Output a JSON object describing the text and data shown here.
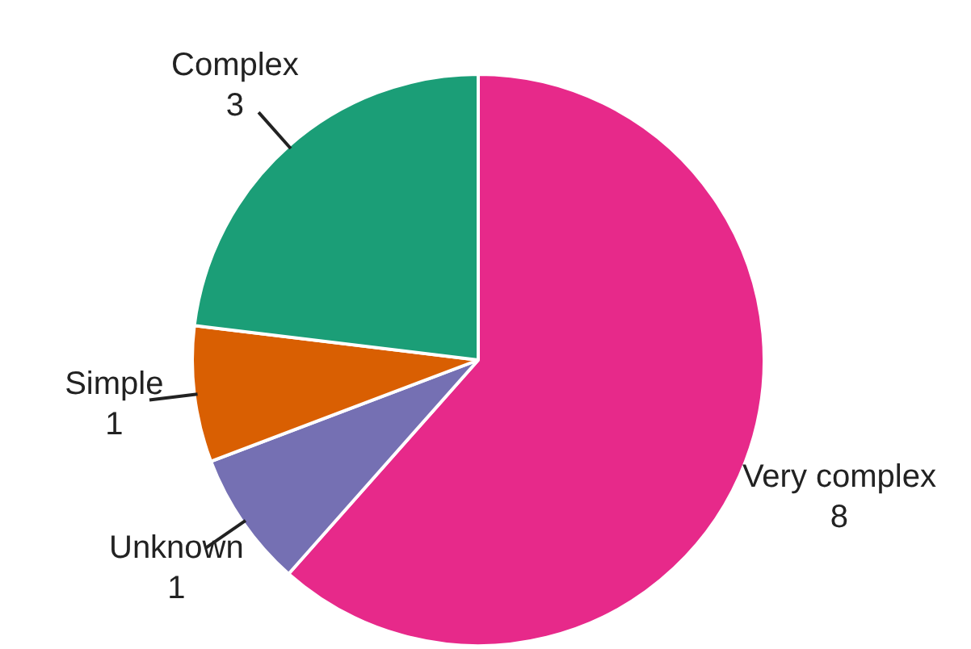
{
  "chart_data": {
    "type": "pie",
    "categories": [
      "Very complex",
      "Unknown",
      "Simple",
      "Complex"
    ],
    "values": [
      8,
      1,
      1,
      3
    ],
    "colors": [
      "#e7298a",
      "#7570b3",
      "#d95f02",
      "#1b9e77"
    ],
    "data_labels": true,
    "legend": false
  }
}
